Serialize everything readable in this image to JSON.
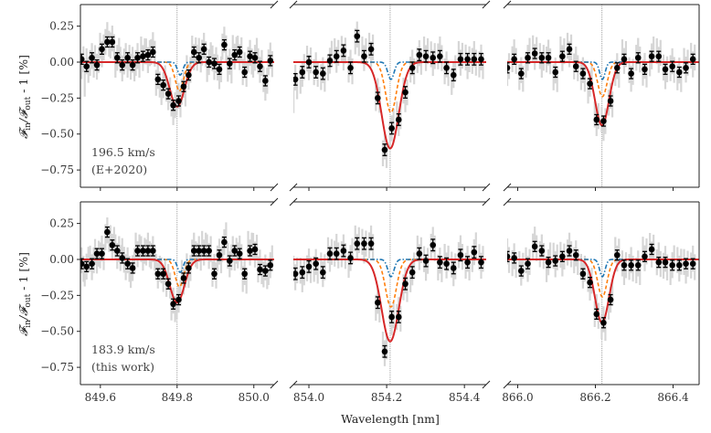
{
  "figure": {
    "ylabel_main": "𝓕",
    "ylabel_sub_in": "in",
    "ylabel_mid": "/𝓕",
    "ylabel_sub_out": "out",
    "ylabel_tail": " - 1 [%]",
    "xlabel": "Wavelength [nm]",
    "colors": {
      "data": "#000000",
      "data_hires": "#d3d3d3",
      "model_total": "#d62728",
      "model_orange": "#ff7f0e",
      "model_blue": "#1f77b4",
      "line_center": "#888888"
    }
  },
  "chart_data": [
    {
      "type": "scatter",
      "row": 0,
      "col": 0,
      "xlim": [
        849.548,
        850.053
      ],
      "ylim": [
        -0.87,
        0.4
      ],
      "yticks": [
        0.25,
        0.0,
        -0.25,
        -0.5,
        -0.75
      ],
      "ytick_labels": [
        "0.25",
        "0.00",
        "−0.25",
        "−0.50",
        "−0.75"
      ],
      "xticks": [
        849.6,
        849.8,
        850.0
      ],
      "xtick_labels": [],
      "line_center": 849.8,
      "annotation": [
        "196.5 km/s",
        "(E+2020)"
      ],
      "x": [
        849.551,
        849.564,
        849.578,
        849.591,
        849.604,
        849.618,
        849.631,
        849.644,
        849.657,
        849.671,
        849.684,
        849.697,
        849.711,
        849.724,
        849.737,
        849.75,
        849.764,
        849.777,
        849.79,
        849.804,
        849.817,
        849.83,
        849.844,
        849.857,
        849.87,
        849.883,
        849.897,
        849.91,
        849.923,
        849.937,
        849.95,
        849.963,
        849.976,
        849.99,
        850.003,
        850.016,
        850.03,
        850.043
      ],
      "y": [
        0.02,
        -0.03,
        0.03,
        -0.02,
        0.09,
        0.14,
        0.14,
        0.03,
        -0.02,
        0.03,
        -0.02,
        0.03,
        0.04,
        0.05,
        0.07,
        -0.12,
        -0.16,
        -0.22,
        -0.3,
        -0.27,
        -0.17,
        -0.09,
        0.07,
        0.03,
        0.09,
        0.0,
        -0.01,
        -0.05,
        0.12,
        -0.01,
        0.05,
        0.07,
        -0.07,
        0.04,
        0.03,
        -0.03,
        -0.13,
        0.01
      ],
      "yerr": 0.035,
      "models": [
        {
          "style": "solid",
          "color": "#d62728",
          "center": 849.8,
          "depth": 0.31,
          "sigma": 0.019
        },
        {
          "style": "dashed",
          "color": "#ff7f0e",
          "center": 849.806,
          "depth": 0.2,
          "sigma": 0.011
        },
        {
          "style": "dashdot",
          "color": "#1f77b4",
          "center": 849.808,
          "depth": 0.09,
          "sigma": 0.007
        }
      ]
    },
    {
      "type": "scatter",
      "row": 0,
      "col": 1,
      "xlim": [
        853.96,
        854.456
      ],
      "ylim": [
        -0.87,
        0.4
      ],
      "yticks": [],
      "ytick_labels": [],
      "xticks": [
        854.0,
        854.2,
        854.4
      ],
      "xtick_labels": [],
      "line_center": 854.209,
      "annotation": [],
      "x": [
        853.965,
        853.983,
        854.0,
        854.018,
        854.036,
        854.054,
        854.071,
        854.089,
        854.107,
        854.124,
        854.142,
        854.16,
        854.177,
        854.195,
        854.213,
        854.231,
        854.248,
        854.266,
        854.284,
        854.301,
        854.319,
        854.337,
        854.354,
        854.372,
        854.39,
        854.408,
        854.425,
        854.443
      ],
      "y": [
        -0.12,
        -0.07,
        0.0,
        -0.07,
        -0.08,
        0.01,
        0.04,
        0.08,
        -0.04,
        0.18,
        0.04,
        0.09,
        -0.25,
        -0.61,
        -0.46,
        -0.4,
        -0.21,
        -0.04,
        0.05,
        0.04,
        0.03,
        0.04,
        -0.04,
        -0.09,
        0.02,
        0.02,
        0.02,
        0.02
      ],
      "yerr": 0.04,
      "models": [
        {
          "style": "solid",
          "color": "#d62728",
          "center": 854.209,
          "depth": 0.6,
          "sigma": 0.022
        },
        {
          "style": "dashed",
          "color": "#ff7f0e",
          "center": 854.211,
          "depth": 0.35,
          "sigma": 0.014
        },
        {
          "style": "dashdot",
          "color": "#1f77b4",
          "center": 854.211,
          "depth": 0.12,
          "sigma": 0.008
        }
      ]
    },
    {
      "type": "scatter",
      "row": 0,
      "col": 2,
      "xlim": [
        865.973,
        866.467
      ],
      "ylim": [
        -0.87,
        0.4
      ],
      "yticks": [],
      "ytick_labels": [],
      "xticks": [
        866.0,
        866.2,
        866.4
      ],
      "xtick_labels": [],
      "line_center": 866.217,
      "annotation": [],
      "x": [
        865.973,
        865.991,
        866.009,
        866.026,
        866.044,
        866.062,
        866.079,
        866.097,
        866.115,
        866.133,
        866.15,
        866.168,
        866.186,
        866.203,
        866.221,
        866.239,
        866.256,
        866.274,
        866.292,
        866.31,
        866.327,
        866.345,
        866.363,
        866.38,
        866.398,
        866.416,
        866.433,
        866.451
      ],
      "y": [
        -0.04,
        0.02,
        -0.08,
        0.03,
        0.06,
        0.03,
        0.03,
        -0.07,
        0.04,
        0.09,
        -0.03,
        -0.08,
        -0.15,
        -0.4,
        -0.41,
        -0.27,
        -0.04,
        0.02,
        -0.08,
        0.03,
        -0.05,
        0.04,
        0.04,
        -0.05,
        -0.03,
        -0.07,
        -0.04,
        0.02
      ],
      "yerr": 0.035,
      "models": [
        {
          "style": "solid",
          "color": "#d62728",
          "center": 866.217,
          "depth": 0.44,
          "sigma": 0.018
        },
        {
          "style": "dashed",
          "color": "#ff7f0e",
          "center": 866.218,
          "depth": 0.24,
          "sigma": 0.012
        },
        {
          "style": "dashdot",
          "color": "#1f77b4",
          "center": 866.218,
          "depth": 0.12,
          "sigma": 0.007
        }
      ]
    },
    {
      "type": "scatter",
      "row": 1,
      "col": 0,
      "xlim": [
        849.548,
        850.053
      ],
      "ylim": [
        -0.87,
        0.4
      ],
      "yticks": [
        0.25,
        0.0,
        -0.25,
        -0.5,
        -0.75
      ],
      "ytick_labels": [
        "0.25",
        "0.00",
        "−0.25",
        "−0.50",
        "−0.75"
      ],
      "xticks": [
        849.6,
        849.8,
        850.0
      ],
      "xtick_labels": [
        "849.6",
        "849.8",
        "850.0"
      ],
      "line_center": 849.8,
      "annotation": [
        "183.9 km/s",
        "(this work)"
      ],
      "x": [
        849.551,
        849.564,
        849.578,
        849.591,
        849.604,
        849.618,
        849.631,
        849.644,
        849.657,
        849.671,
        849.684,
        849.697,
        849.711,
        849.724,
        849.737,
        849.75,
        849.764,
        849.777,
        849.79,
        849.804,
        849.817,
        849.83,
        849.844,
        849.857,
        849.87,
        849.883,
        849.897,
        849.91,
        849.923,
        849.937,
        849.95,
        849.963,
        849.976,
        849.99,
        850.003,
        850.016,
        850.03,
        850.043
      ],
      "y": [
        -0.03,
        -0.05,
        -0.03,
        0.04,
        0.04,
        0.19,
        0.1,
        0.06,
        0.01,
        -0.03,
        -0.06,
        0.06,
        0.06,
        0.06,
        0.06,
        -0.1,
        -0.1,
        -0.17,
        -0.31,
        -0.28,
        -0.13,
        -0.06,
        0.06,
        0.06,
        0.06,
        0.06,
        -0.1,
        0.03,
        0.12,
        -0.01,
        0.06,
        0.04,
        -0.1,
        0.06,
        0.07,
        -0.07,
        -0.08,
        -0.04
      ],
      "yerr": 0.035,
      "models": [
        {
          "style": "solid",
          "color": "#d62728",
          "center": 849.8,
          "depth": 0.3,
          "sigma": 0.019
        },
        {
          "style": "dashed",
          "color": "#ff7f0e",
          "center": 849.806,
          "depth": 0.19,
          "sigma": 0.011
        },
        {
          "style": "dashdot",
          "color": "#1f77b4",
          "center": 849.808,
          "depth": 0.09,
          "sigma": 0.007
        }
      ]
    },
    {
      "type": "scatter",
      "row": 1,
      "col": 1,
      "xlim": [
        853.96,
        854.456
      ],
      "ylim": [
        -0.87,
        0.4
      ],
      "yticks": [],
      "ytick_labels": [],
      "xticks": [
        854.0,
        854.2,
        854.4
      ],
      "xtick_labels": [
        "854.0",
        "854.2",
        "854.4"
      ],
      "line_center": 854.209,
      "annotation": [],
      "x": [
        853.965,
        853.983,
        854.0,
        854.018,
        854.036,
        854.054,
        854.071,
        854.089,
        854.107,
        854.124,
        854.142,
        854.16,
        854.177,
        854.195,
        854.213,
        854.231,
        854.248,
        854.266,
        854.284,
        854.301,
        854.319,
        854.337,
        854.354,
        854.372,
        854.39,
        854.408,
        854.425,
        854.443
      ],
      "y": [
        -0.1,
        -0.09,
        -0.05,
        -0.03,
        -0.09,
        0.04,
        0.04,
        0.06,
        0.01,
        0.11,
        0.11,
        0.11,
        -0.3,
        -0.64,
        -0.4,
        -0.4,
        -0.17,
        -0.09,
        0.04,
        -0.01,
        0.1,
        -0.02,
        -0.03,
        -0.06,
        0.03,
        -0.02,
        0.05,
        -0.02
      ],
      "yerr": 0.04,
      "models": [
        {
          "style": "solid",
          "color": "#d62728",
          "center": 854.209,
          "depth": 0.57,
          "sigma": 0.022
        },
        {
          "style": "dashed",
          "color": "#ff7f0e",
          "center": 854.211,
          "depth": 0.33,
          "sigma": 0.014
        },
        {
          "style": "dashdot",
          "color": "#1f77b4",
          "center": 854.211,
          "depth": 0.12,
          "sigma": 0.008
        }
      ]
    },
    {
      "type": "scatter",
      "row": 1,
      "col": 2,
      "xlim": [
        865.973,
        866.467
      ],
      "ylim": [
        -0.87,
        0.4
      ],
      "yticks": [],
      "ytick_labels": [],
      "xticks": [
        866.0,
        866.2,
        866.4
      ],
      "xtick_labels": [
        "866.0",
        "866.2",
        "866.4"
      ],
      "line_center": 866.217,
      "annotation": [],
      "x": [
        865.973,
        865.991,
        866.009,
        866.026,
        866.044,
        866.062,
        866.079,
        866.097,
        866.115,
        866.133,
        866.15,
        866.168,
        866.186,
        866.203,
        866.221,
        866.239,
        866.256,
        866.274,
        866.292,
        866.31,
        866.327,
        866.345,
        866.363,
        866.38,
        866.398,
        866.416,
        866.433,
        866.451
      ],
      "y": [
        0.02,
        0.01,
        -0.08,
        -0.03,
        0.09,
        0.06,
        -0.02,
        -0.01,
        0.02,
        0.06,
        0.03,
        -0.1,
        -0.16,
        -0.38,
        -0.44,
        -0.28,
        0.03,
        -0.04,
        -0.04,
        -0.04,
        0.02,
        0.07,
        -0.02,
        -0.02,
        -0.04,
        -0.04,
        -0.03,
        -0.03
      ],
      "yerr": 0.035,
      "models": [
        {
          "style": "solid",
          "color": "#d62728",
          "center": 866.217,
          "depth": 0.44,
          "sigma": 0.018
        },
        {
          "style": "dashed",
          "color": "#ff7f0e",
          "center": 866.218,
          "depth": 0.26,
          "sigma": 0.012
        },
        {
          "style": "dashdot",
          "color": "#1f77b4",
          "center": 866.218,
          "depth": 0.12,
          "sigma": 0.007
        }
      ]
    }
  ]
}
